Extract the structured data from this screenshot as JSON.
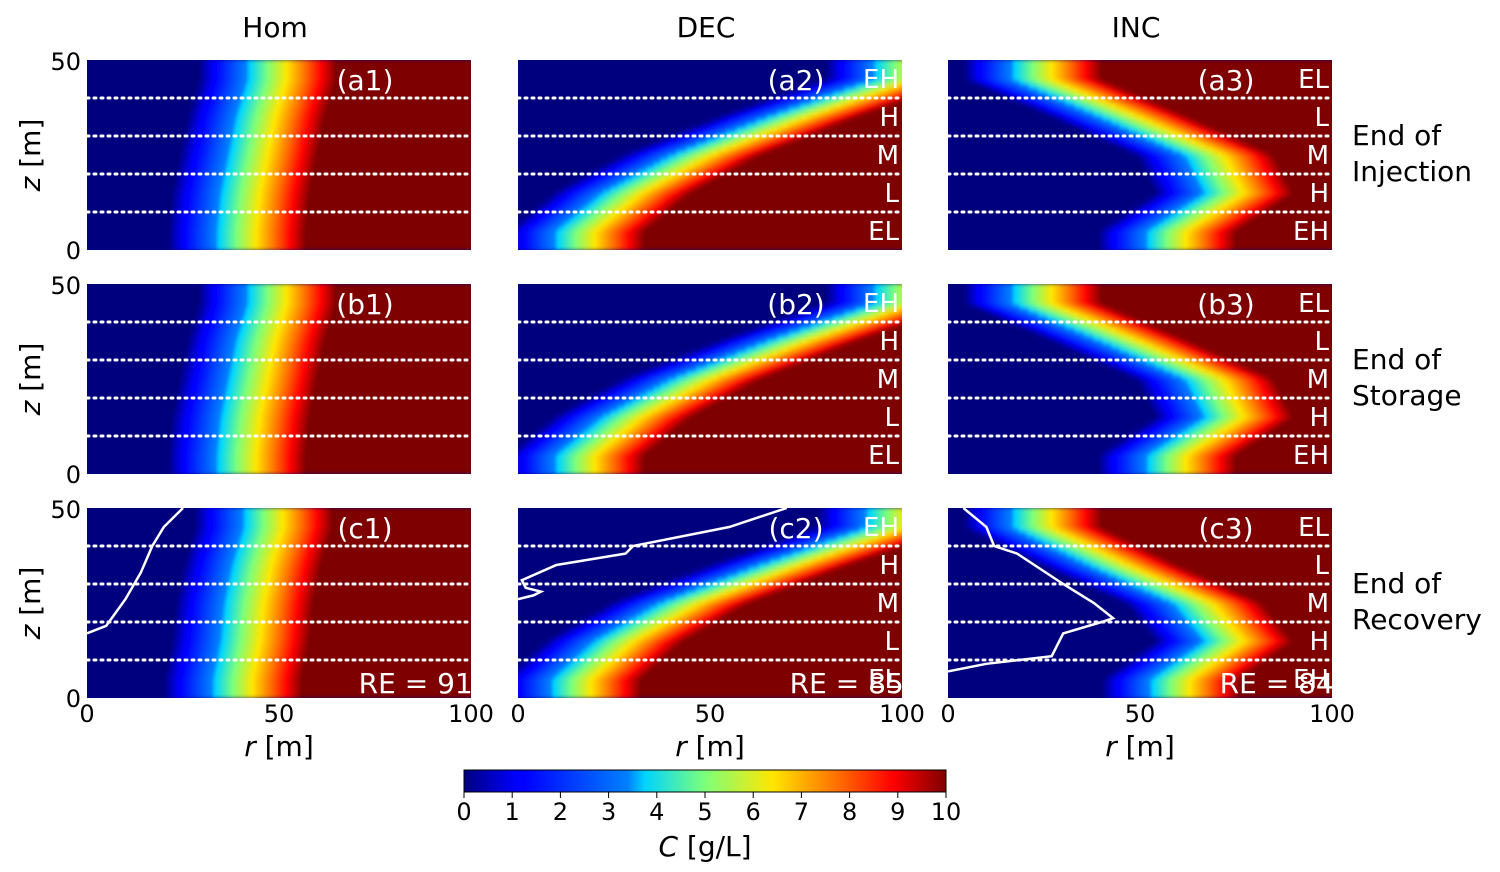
{
  "chart_data": {
    "type": "heatmap",
    "column_titles": [
      "Hom",
      "DEC",
      "INC"
    ],
    "row_titles": [
      [
        "End of",
        "Injection"
      ],
      [
        "End of",
        "Storage"
      ],
      [
        "End of",
        "Recovery"
      ]
    ],
    "x_axis": {
      "label_var": "r",
      "label_unit": " [m]",
      "ticks": [
        "0",
        "50",
        "100"
      ],
      "range": [
        0,
        100
      ]
    },
    "y_axis": {
      "label_var": "z",
      "label_unit": " [m]",
      "ticks": [
        "0",
        "50"
      ],
      "range": [
        0,
        50
      ]
    },
    "layer_boundaries_z": [
      10,
      20,
      30,
      40
    ],
    "panels": [
      {
        "id": "a1",
        "label": "(a1)",
        "layers": [],
        "re": "",
        "front_r": [
          39,
          40,
          42,
          44,
          47
        ],
        "contour": null
      },
      {
        "id": "a2",
        "label": "(a2)",
        "layers": [
          "EH",
          "H",
          "M",
          "L",
          "EL"
        ],
        "re": "",
        "front_r": [
          15,
          27,
          45,
          70,
          98
        ],
        "contour": null
      },
      {
        "id": "a3",
        "label": "(a3)",
        "layers": [
          "EL",
          "L",
          "M",
          "H",
          "EH"
        ],
        "re": "",
        "front_r": [
          57,
          72,
          67,
          45,
          22
        ],
        "contour": null
      },
      {
        "id": "b1",
        "label": "(b1)",
        "layers": [],
        "re": "",
        "front_r": [
          39,
          40,
          42,
          44,
          47
        ],
        "contour": null
      },
      {
        "id": "b2",
        "label": "(b2)",
        "layers": [
          "EH",
          "H",
          "M",
          "L",
          "EL"
        ],
        "re": "",
        "front_r": [
          15,
          27,
          45,
          70,
          98
        ],
        "contour": null
      },
      {
        "id": "b3",
        "label": "(b3)",
        "layers": [
          "EL",
          "L",
          "M",
          "H",
          "EH"
        ],
        "re": "",
        "front_r": [
          57,
          72,
          67,
          45,
          22
        ],
        "contour": null
      },
      {
        "id": "c1",
        "label": "(c1)",
        "layers": [],
        "re": "RE = 91%",
        "front_r": [
          38,
          40,
          41,
          43,
          46
        ],
        "contour": [
          [
            0,
            17
          ],
          [
            5,
            19
          ],
          [
            10,
            26
          ],
          [
            14,
            33
          ],
          [
            17,
            40
          ],
          [
            20,
            45
          ],
          [
            25,
            50
          ]
        ]
      },
      {
        "id": "c2",
        "label": "(c2)",
        "layers": [
          "EH",
          "H",
          "M",
          "L",
          "EL"
        ],
        "re": "RE = 85%",
        "front_r": [
          14,
          25,
          42,
          68,
          96
        ],
        "contour": [
          [
            0,
            26
          ],
          [
            4,
            27
          ],
          [
            6,
            28
          ],
          [
            2,
            29
          ],
          [
            1,
            31
          ],
          [
            10,
            35
          ],
          [
            28,
            38
          ],
          [
            30,
            40
          ],
          [
            55,
            45
          ],
          [
            70,
            50
          ]
        ]
      },
      {
        "id": "c3",
        "label": "(c3)",
        "layers": [
          "EL",
          "L",
          "M",
          "H",
          "EH"
        ],
        "re": "RE = 84%",
        "front_r": [
          58,
          72,
          64,
          42,
          22
        ],
        "contour": [
          [
            0,
            7
          ],
          [
            10,
            9
          ],
          [
            27,
            11
          ],
          [
            30,
            17
          ],
          [
            40,
            20
          ],
          [
            43,
            21
          ],
          [
            38,
            25
          ],
          [
            30,
            30
          ],
          [
            18,
            38
          ],
          [
            12,
            40
          ],
          [
            10,
            45
          ],
          [
            4,
            50
          ]
        ]
      }
    ],
    "colorbar": {
      "ticks": [
        "0",
        "1",
        "2",
        "3",
        "4",
        "5",
        "6",
        "7",
        "8",
        "9",
        "10"
      ],
      "range": [
        0,
        10
      ],
      "colormap": "jet",
      "label_var": "C",
      "label_unit": " [g/L]"
    },
    "colors": {
      "contour": "#ffffff",
      "boundary": "#ffffff"
    }
  }
}
